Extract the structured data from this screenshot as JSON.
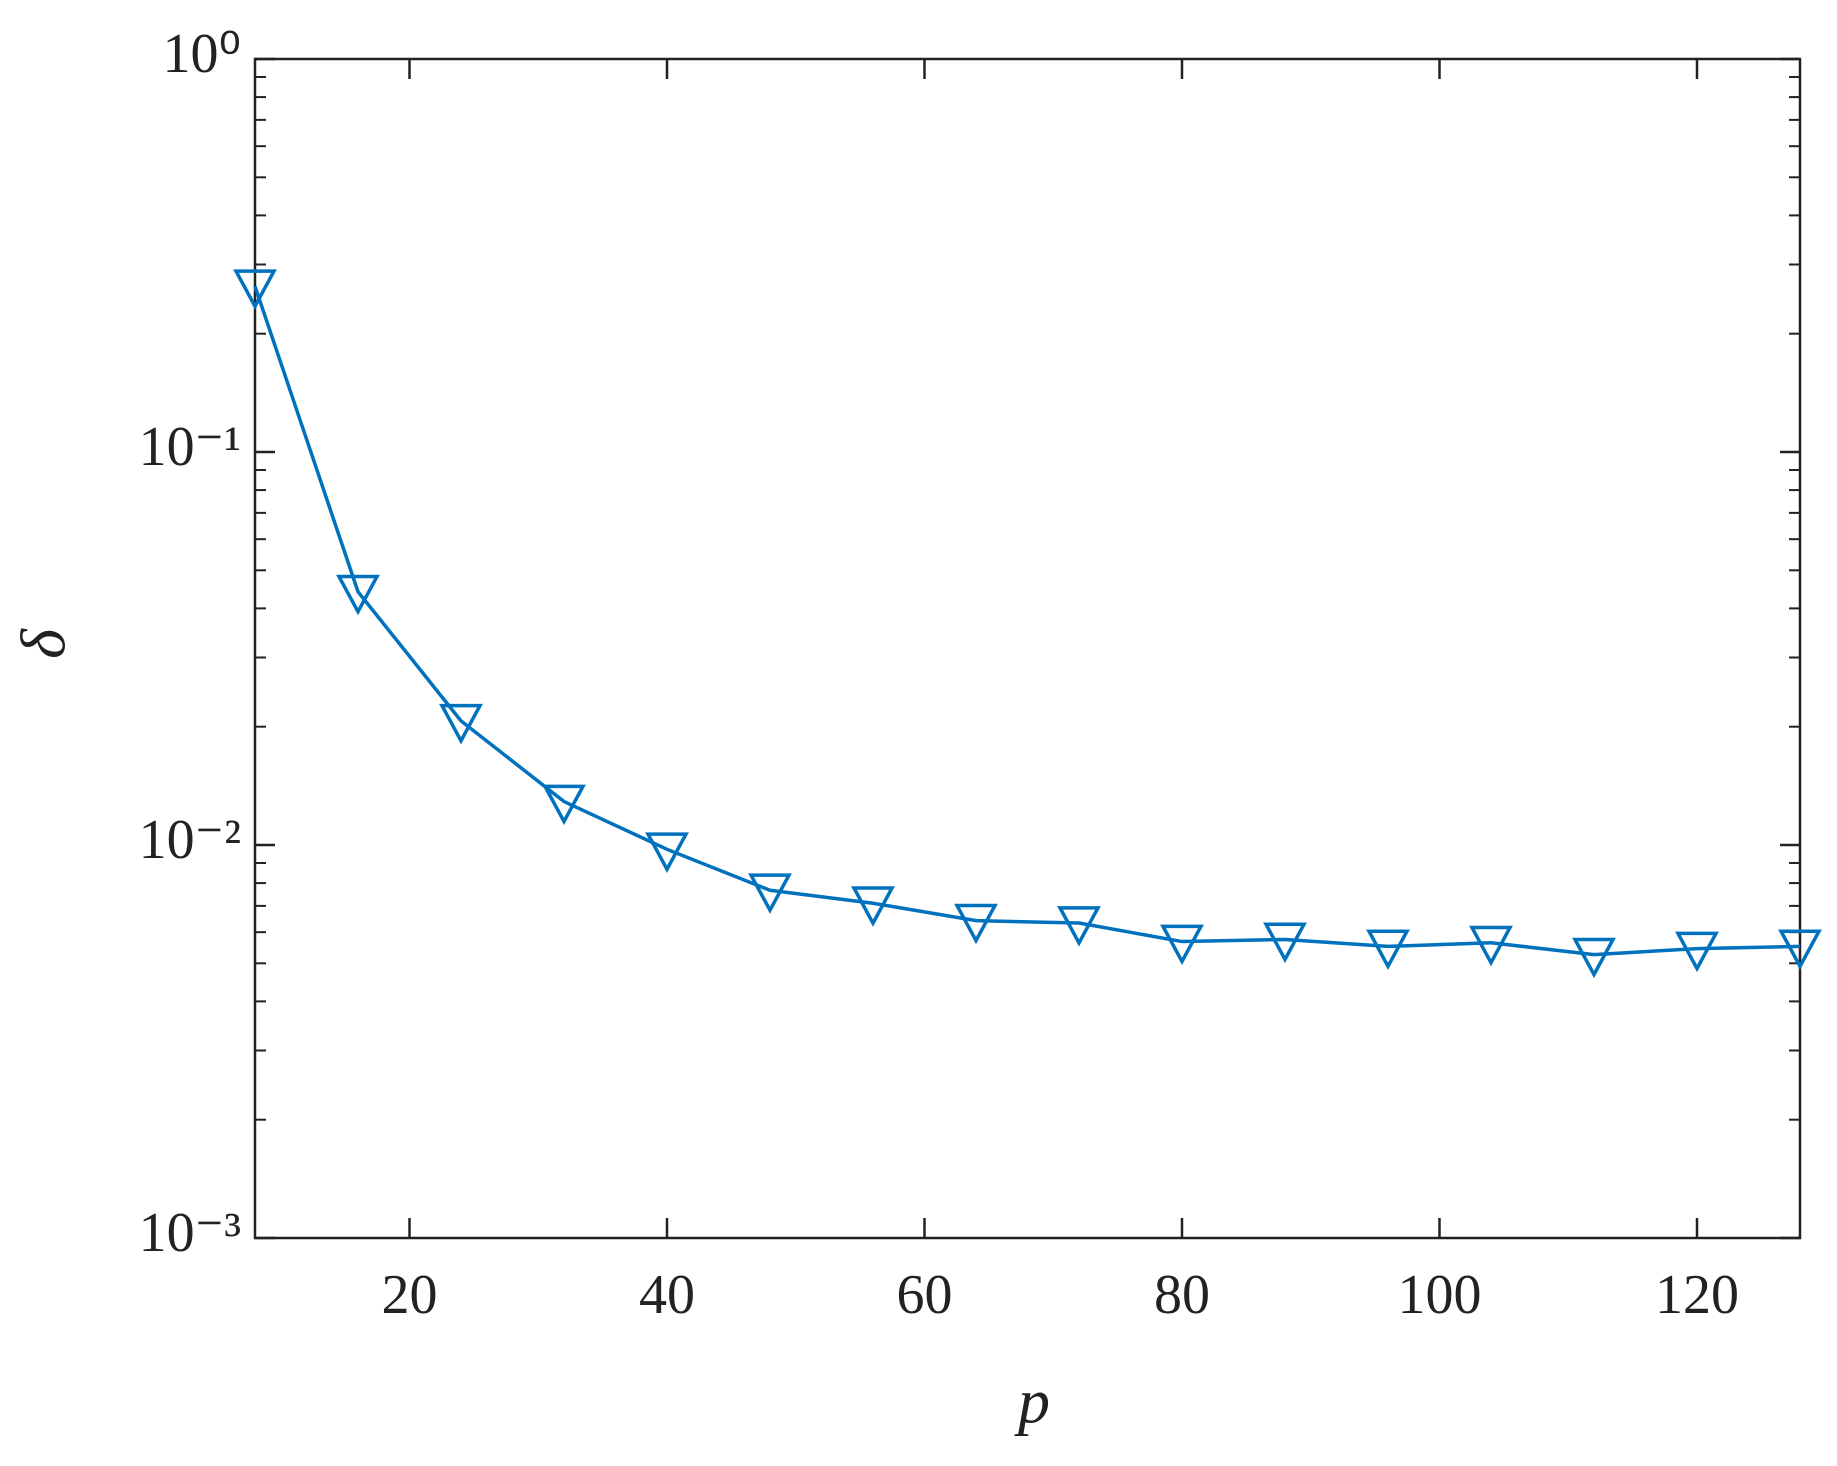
{
  "chart_data": {
    "type": "line",
    "x_label": "p",
    "y_label": "δ",
    "x": [
      8,
      16,
      24,
      32,
      40,
      48,
      56,
      64,
      72,
      80,
      88,
      96,
      104,
      112,
      120,
      128
    ],
    "series": [
      {
        "color": "#0072bd",
        "marker": "triangle-down",
        "values": [
          0.264,
          0.0441,
          0.0207,
          0.0129,
          0.00975,
          0.00767,
          0.00711,
          0.00642,
          0.00633,
          0.00568,
          0.00575,
          0.00552,
          0.00564,
          0.00526,
          0.00545,
          0.00552
        ]
      }
    ],
    "xlim": [
      8,
      128
    ],
    "xticks": [
      20,
      40,
      60,
      80,
      100,
      120
    ],
    "ylim": [
      0.001,
      1
    ],
    "y_scale": "log",
    "yticks": [
      {
        "value": 0.001,
        "label": "10⁻³"
      },
      {
        "value": 0.01,
        "label": "10⁻²"
      },
      {
        "value": 0.1,
        "label": "10⁻¹"
      },
      {
        "value": 1,
        "label": "10⁰"
      }
    ],
    "grid": false
  }
}
